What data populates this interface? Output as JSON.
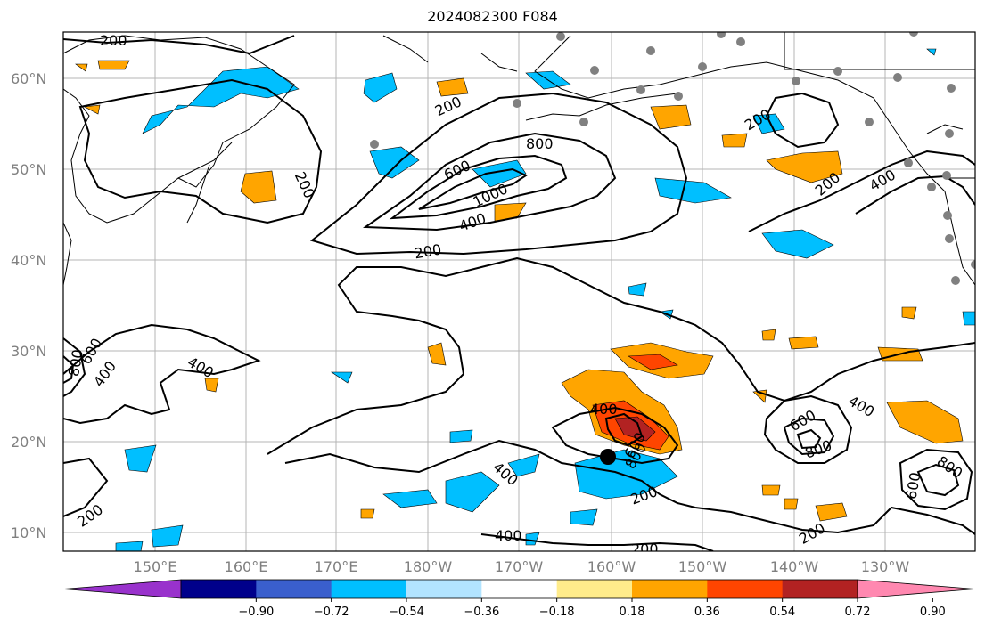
{
  "title": "2024082300 F084",
  "map": {
    "lat_labels": [
      "60°N",
      "50°N",
      "40°N",
      "30°N",
      "20°N",
      "10°N"
    ],
    "lon_labels": [
      "150°E",
      "160°E",
      "170°E",
      "180°W",
      "170°W",
      "160°W",
      "150°W",
      "140°W",
      "130°W"
    ],
    "contour_labels": [
      "200",
      "200",
      "200",
      "200",
      "200",
      "200",
      "200",
      "200",
      "200",
      "200",
      "400",
      "400",
      "400",
      "400",
      "400",
      "400",
      "400",
      "400",
      "600",
      "600",
      "600",
      "600",
      "600",
      "800",
      "800",
      "800",
      "800",
      "800",
      "1000"
    ],
    "colors": {
      "land_outline": "#000000",
      "gridline": "#a0a0a0",
      "station_dot": "#808080",
      "cyclone_marker": "#000000"
    }
  },
  "colorbar": {
    "tick_labels": [
      "−0.90",
      "−0.72",
      "−0.54",
      "−0.36",
      "−0.18",
      "0.18",
      "0.36",
      "0.54",
      "0.72",
      "0.90"
    ],
    "bin_colors": [
      "#9932cc",
      "#00008b",
      "#3a5fcd",
      "#00bfff",
      "#b2e4ff",
      "#ffffff",
      "#ffec8b",
      "#ffa500",
      "#ff4500",
      "#b22222",
      "#ff88b0"
    ],
    "min_extend_color": "#9932cc",
    "max_extend_color": "#ff88b0"
  }
}
